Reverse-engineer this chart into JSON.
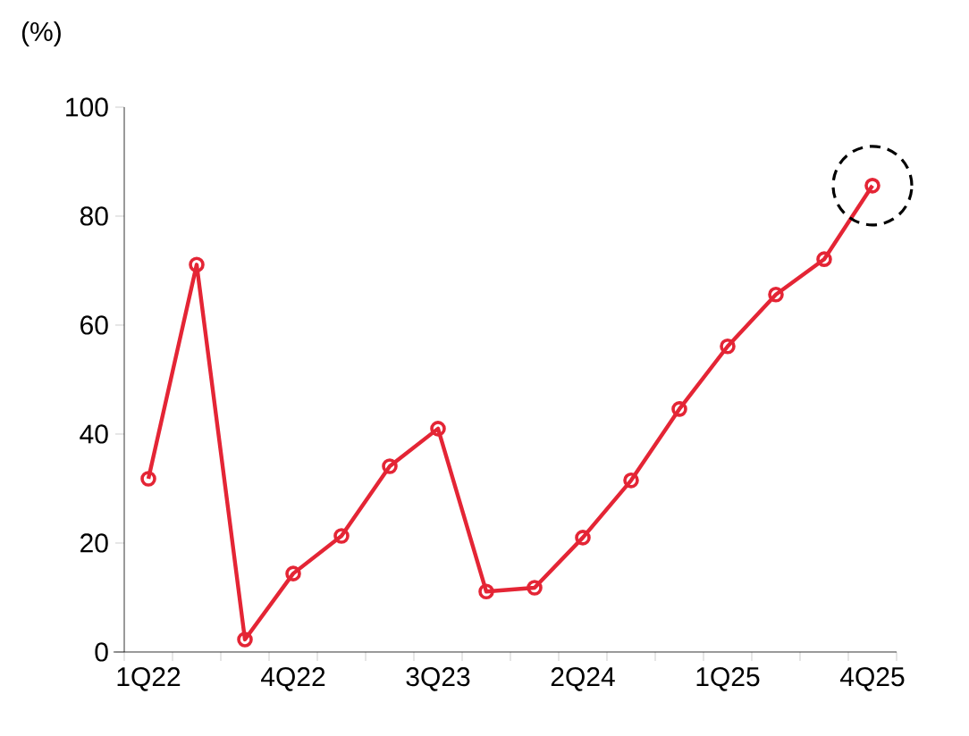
{
  "chart_data": {
    "type": "line",
    "ylabel": "(%)",
    "categories": [
      "1Q22",
      null,
      null,
      "4Q22",
      null,
      null,
      "3Q23",
      null,
      null,
      "2Q24",
      null,
      null,
      "1Q25",
      null,
      null,
      "4Q25"
    ],
    "series": [
      {
        "color": "#e42535",
        "values": [
          31.8,
          71.1,
          2.3,
          14.4,
          21.3,
          34.1,
          41.0,
          11.1,
          11.8,
          21.0,
          31.5,
          44.6,
          56.1,
          65.6,
          72.1,
          85.6
        ]
      }
    ],
    "ylim": [
      0,
      100
    ],
    "yticks": [
      0,
      20,
      40,
      60,
      80,
      100
    ],
    "grid": false,
    "marker": "circle",
    "line_style": "solid"
  }
}
